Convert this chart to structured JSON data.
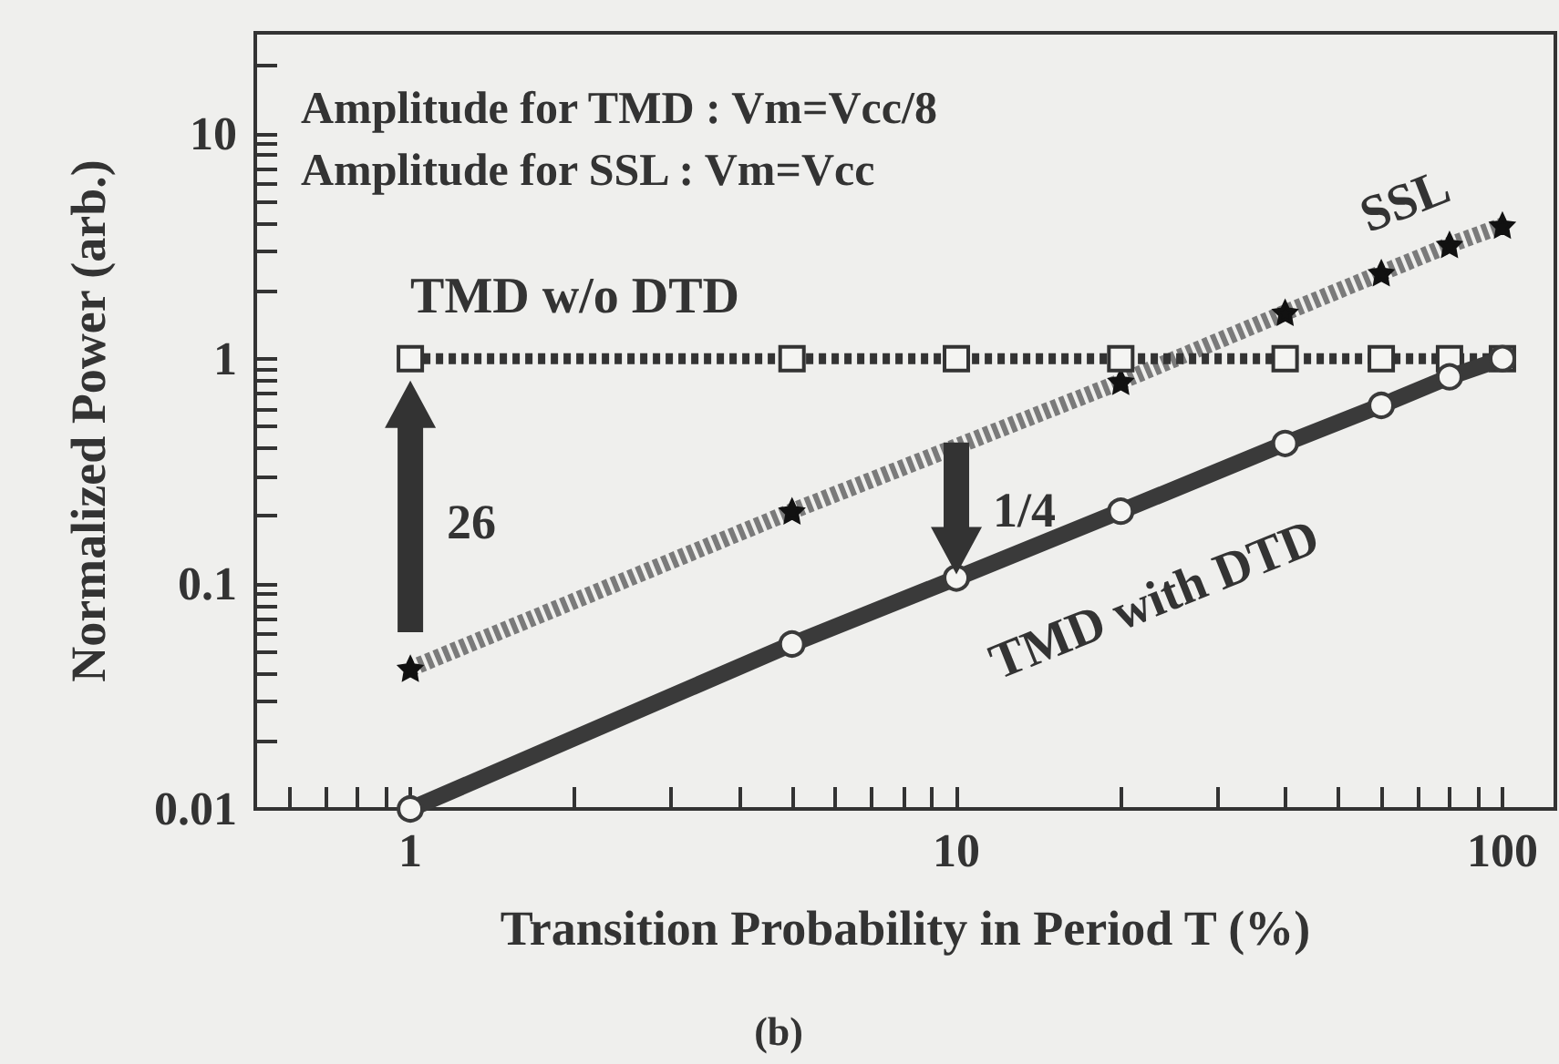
{
  "chart_data": {
    "type": "line",
    "xlabel": "Transition Probability in Period T (%)",
    "ylabel": "Normalized Power (arb.)",
    "log": "xy",
    "grid": false,
    "legend": false,
    "xlim": [
      0.52,
      125
    ],
    "ylim": [
      0.01,
      28
    ],
    "xticks": [
      {
        "value": 0.6,
        "label": null
      },
      {
        "value": 0.7,
        "label": null
      },
      {
        "value": 0.8,
        "label": null
      },
      {
        "value": 0.9,
        "label": null
      },
      1,
      {
        "value": 2,
        "label": null
      },
      {
        "value": 3,
        "label": null
      },
      {
        "value": 4,
        "label": null
      },
      {
        "value": 5,
        "label": null
      },
      {
        "value": 6,
        "label": null
      },
      {
        "value": 7,
        "label": null
      },
      {
        "value": 8,
        "label": null
      },
      {
        "value": 9,
        "label": null
      },
      10,
      {
        "value": 20,
        "label": null
      },
      {
        "value": 30,
        "label": null
      },
      {
        "value": 40,
        "label": null
      },
      {
        "value": 50,
        "label": null
      },
      {
        "value": 60,
        "label": null
      },
      {
        "value": 70,
        "label": null
      },
      {
        "value": 80,
        "label": null
      },
      {
        "value": 90,
        "label": null
      },
      100
    ],
    "yticks": [
      0.01,
      {
        "value": 0.02,
        "label": null
      },
      {
        "value": 0.03,
        "label": null
      },
      {
        "value": 0.04,
        "label": null
      },
      {
        "value": 0.05,
        "label": null
      },
      {
        "value": 0.06,
        "label": null
      },
      {
        "value": 0.07,
        "label": null
      },
      {
        "value": 0.08,
        "label": null
      },
      {
        "value": 0.09,
        "label": null
      },
      0.1,
      {
        "value": 0.2,
        "label": null
      },
      {
        "value": 0.3,
        "label": null
      },
      {
        "value": 0.4,
        "label": null
      },
      {
        "value": 0.5,
        "label": null
      },
      {
        "value": 0.6,
        "label": null
      },
      {
        "value": 0.7,
        "label": null
      },
      {
        "value": 0.8,
        "label": null
      },
      {
        "value": 0.9,
        "label": null
      },
      1,
      {
        "value": 2,
        "label": null
      },
      {
        "value": 3,
        "label": null
      },
      {
        "value": 4,
        "label": null
      },
      {
        "value": 5,
        "label": null
      },
      {
        "value": 6,
        "label": null
      },
      {
        "value": 7,
        "label": null
      },
      {
        "value": 8,
        "label": null
      },
      {
        "value": 9,
        "label": null
      },
      10,
      {
        "value": 20,
        "label": null
      }
    ],
    "series": [
      {
        "name": "TMD w/o DTD",
        "color": "#333333",
        "marker": "square",
        "line_style": "dotted",
        "x": [
          1,
          5,
          10,
          20,
          40,
          60,
          80,
          100
        ],
        "values": [
          1,
          1,
          1,
          1,
          1,
          1,
          1,
          1
        ]
      },
      {
        "name": "SSL",
        "color": "#7a7a7a",
        "marker": "star",
        "line_style": "dashed",
        "x": [
          1,
          5,
          20,
          40,
          60,
          80,
          100
        ],
        "values": [
          0.042,
          0.21,
          0.79,
          1.6,
          2.4,
          3.2,
          3.9
        ]
      },
      {
        "name": "TMD with DTD",
        "color": "#3a3a3a",
        "marker": "circle",
        "line_style": "solid",
        "x": [
          1,
          5,
          10,
          20,
          40,
          60,
          80,
          100
        ],
        "values": [
          0.01,
          0.054,
          0.106,
          0.21,
          0.42,
          0.62,
          0.83,
          1
        ]
      }
    ],
    "annotations": [
      "Amplitude for TMD : Vm=Vcc/8",
      "Amplitude for SSL : Vm=Vcc",
      "26",
      "1/4",
      "(b)"
    ]
  }
}
